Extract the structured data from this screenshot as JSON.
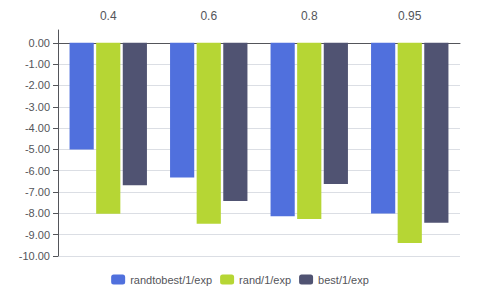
{
  "chart_data": {
    "type": "bar",
    "categories": [
      "0.4",
      "0.6",
      "0.8",
      "0.95"
    ],
    "series": [
      {
        "name": "randtobest/1/exp",
        "values": [
          -5.01,
          -6.32,
          -8.13,
          -8.01
        ]
      },
      {
        "name": "rand/1/exp",
        "values": [
          -8.01358,
          -8.48379,
          -8.26192,
          -9.38861
        ]
      },
      {
        "name": "best/1/exp",
        "values": [
          -6.68,
          -7.42,
          -6.62,
          -8.44
        ]
      }
    ],
    "ylim": [
      -10.0,
      0.6
    ],
    "yticks": [
      {
        "value": 0.0,
        "label": "0.00"
      },
      {
        "value": -1.0,
        "label": "-1.00"
      },
      {
        "value": -2.0,
        "label": "-2.00"
      },
      {
        "value": -3.0,
        "label": "-3.00"
      },
      {
        "value": -4.0,
        "label": "-4.00"
      },
      {
        "value": -5.0,
        "label": "-5.00"
      },
      {
        "value": -6.0,
        "label": "-6.00"
      },
      {
        "value": -7.0,
        "label": "-7.00"
      },
      {
        "value": -8.0,
        "label": "-8.00"
      },
      {
        "value": -9.0,
        "label": "-9.00"
      },
      {
        "value": -10.0,
        "label": "-10.00"
      }
    ],
    "grid": true,
    "legend": "bottom"
  }
}
